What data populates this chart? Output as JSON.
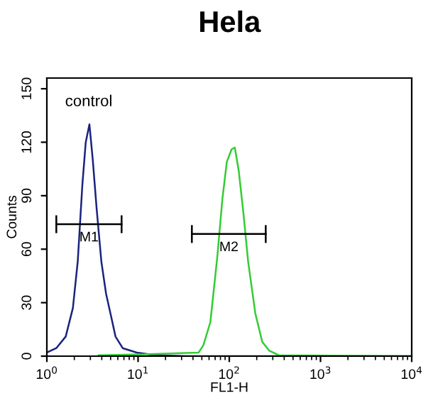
{
  "chart_data": {
    "type": "line",
    "title": "Hela",
    "xlabel": "FL1-H",
    "ylabel": "Counts",
    "log": "x",
    "grid": false,
    "marker": "none",
    "line_style": "solid",
    "xlim": [
      1,
      10000
    ],
    "xticks": [
      {
        "value": 1,
        "label": "10$^{0}$"
      },
      {
        "value": 10,
        "label": "10$^{1}$"
      },
      {
        "value": 100,
        "label": "10$^{2}$"
      },
      {
        "value": 1000,
        "label": "10$^{3}$"
      },
      {
        "value": 10000,
        "label": "10$^{4}$"
      }
    ],
    "ylim": [
      0,
      156
    ],
    "yticks": [
      0,
      30,
      60,
      90,
      120,
      150
    ],
    "series": [
      {
        "color": "#1a237e",
        "x": [
          1,
          1.27,
          1.61,
          1.93,
          2.18,
          2.45,
          2.67,
          2.93,
          3.19,
          3.51,
          3.96,
          4.46,
          5.03,
          5.66,
          6.78,
          9.7,
          15.7,
          36,
          10000
        ],
        "values": [
          2,
          4.5,
          11,
          27,
          53,
          96,
          120,
          130,
          110,
          83,
          53,
          35,
          23,
          11,
          4.5,
          2,
          0.5,
          0,
          0
        ]
      },
      {
        "color": "#33cc33",
        "x": [
          3.7,
          10.9,
          46,
          51.9,
          62,
          74,
          84,
          94,
          106,
          115,
          127,
          143,
          161,
          193,
          230,
          275,
          350,
          10000
        ],
        "values": [
          0.5,
          1,
          2,
          6,
          19,
          56,
          88,
          109,
          116,
          117,
          104,
          80,
          53,
          24,
          8,
          3,
          0.5,
          0
        ]
      },
      {
        "color": "#000000",
        "x": [
          1.27,
          6.6
        ],
        "values": [
          74,
          74
        ],
        "errors": [
          5,
          5
        ]
      },
      {
        "color": "#000000",
        "x": [
          38.9,
          251
        ],
        "values": [
          68.5,
          68.5
        ],
        "errors": [
          5,
          5
        ]
      }
    ],
    "annotations": [
      "control",
      {
        "text": "M1",
        "x": 2.9,
        "y": 74
      },
      {
        "text": "M2",
        "x": 99,
        "y": 68.5
      }
    ]
  }
}
